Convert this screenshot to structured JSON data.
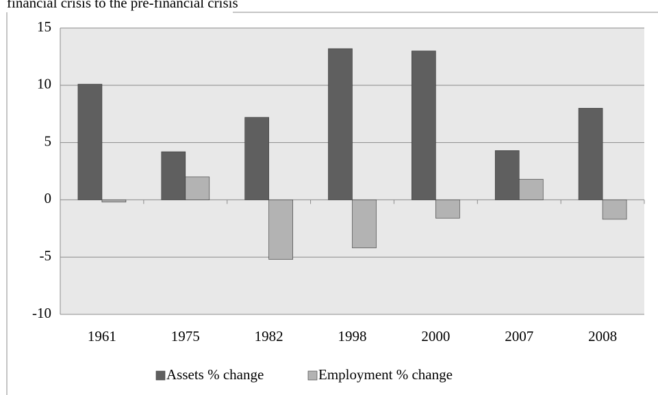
{
  "chart_data": {
    "type": "bar",
    "title": "financial crisis to the pre-financial crisis",
    "categories": [
      "1961",
      "1975",
      "1982",
      "1998",
      "2000",
      "2007",
      "2008"
    ],
    "series": [
      {
        "name": "Assets % change",
        "color": "#5f5f5f",
        "values": [
          10.1,
          4.2,
          7.2,
          13.2,
          13.0,
          4.3,
          8.0
        ]
      },
      {
        "name": "Employment  % change",
        "color": "#b3b3b3",
        "values": [
          -0.2,
          2.0,
          -5.2,
          -4.2,
          -1.6,
          1.8,
          -1.7
        ]
      }
    ],
    "ylim": [
      -10,
      15
    ],
    "yticks": [
      -10,
      -5,
      0,
      5,
      10,
      15
    ],
    "grid": true,
    "legend": "bottom"
  }
}
